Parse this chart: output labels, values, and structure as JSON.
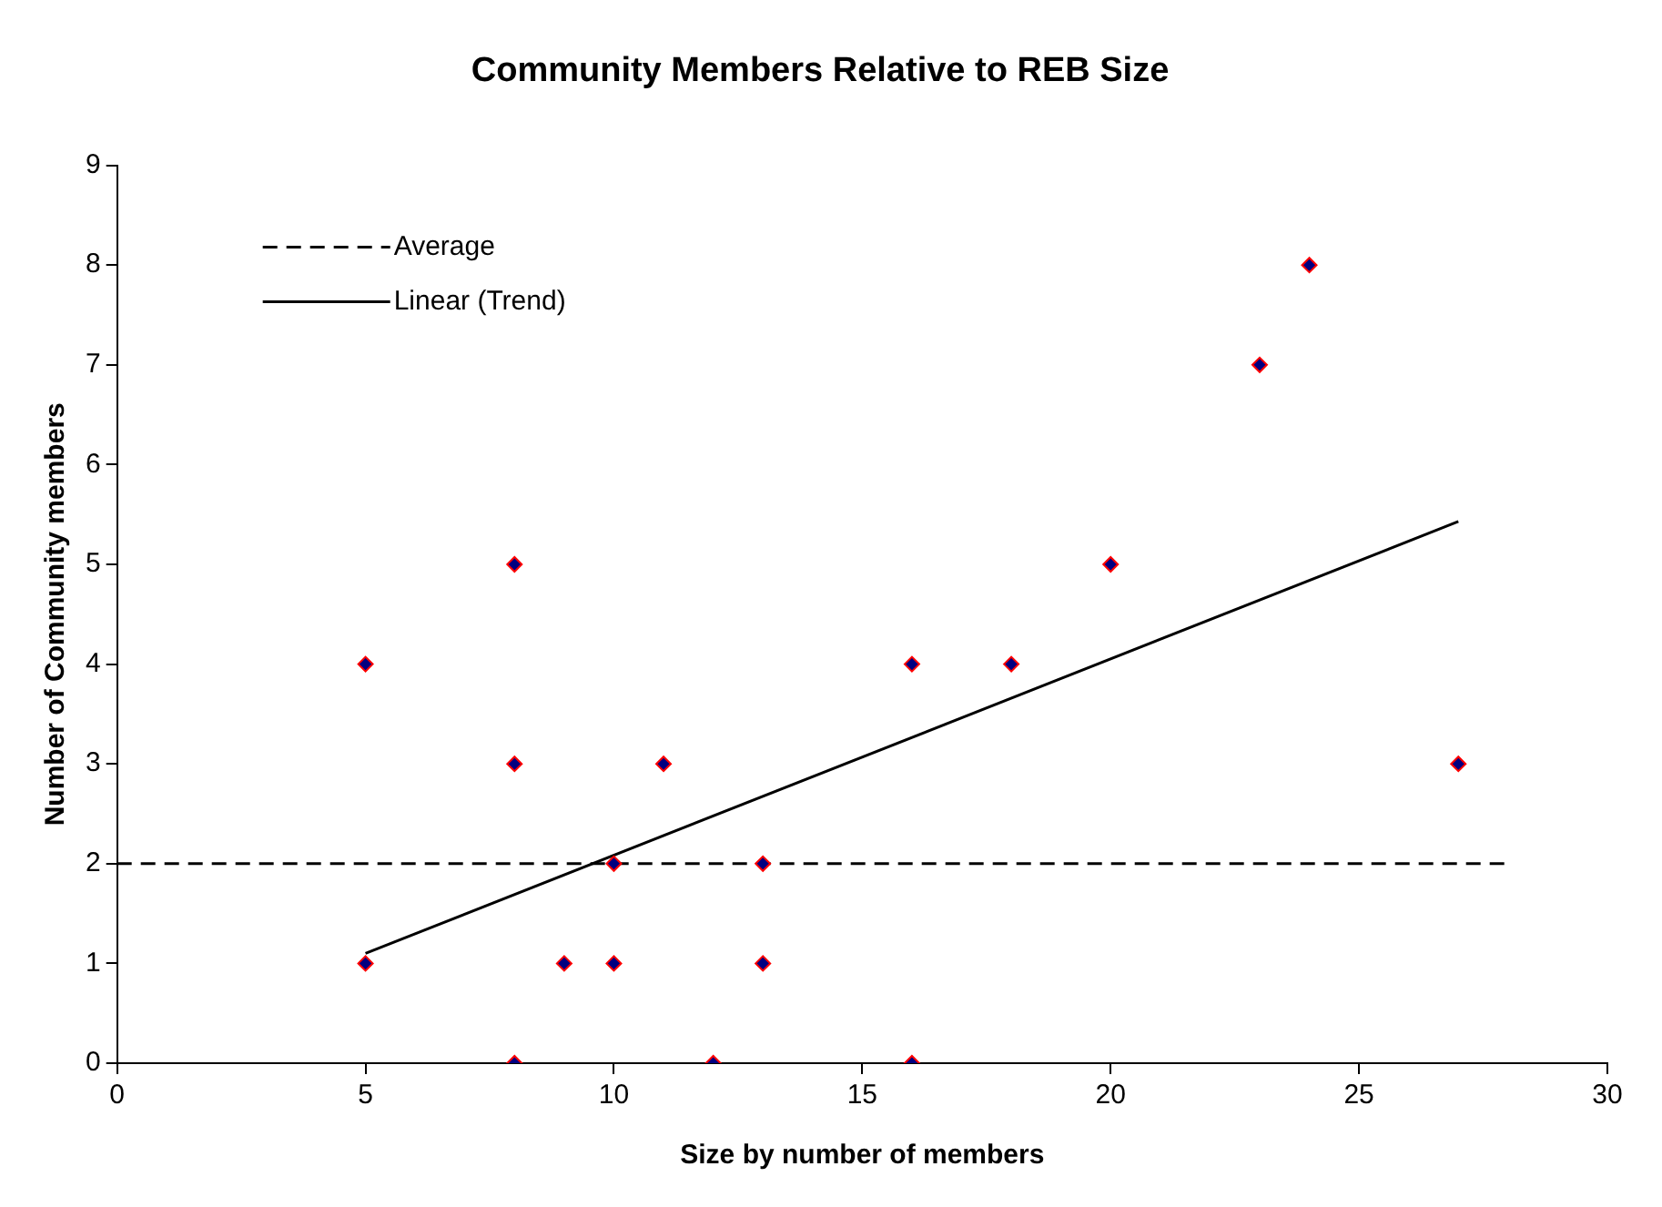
{
  "chart_data": {
    "type": "scatter",
    "title": "Community Members Relative to REB Size",
    "xlabel": "Size by number of members",
    "ylabel": "Number of Community members",
    "xlim": [
      0,
      30
    ],
    "xticks": [
      0,
      5,
      10,
      15,
      20,
      25,
      30
    ],
    "ylim": [
      0,
      9
    ],
    "yticks": [
      0,
      1,
      2,
      3,
      4,
      5,
      6,
      7,
      8,
      9
    ],
    "grid": false,
    "legend": "top left",
    "series": [
      {
        "type": "scatter",
        "marker": "diamond",
        "color": "#000080",
        "x": [
          5,
          5,
          8,
          8,
          8,
          9,
          10,
          10,
          11,
          12,
          13,
          13,
          16,
          16,
          18,
          20,
          23,
          24,
          27
        ],
        "values": [
          4,
          1,
          5,
          3,
          0,
          1,
          2,
          1,
          3,
          0,
          2,
          1,
          4,
          0,
          4,
          5,
          7,
          8,
          3
        ]
      },
      {
        "type": "line",
        "name": "Average",
        "color": "#000000",
        "line_style": "dashed",
        "x": [
          0,
          28
        ],
        "values": [
          2,
          2
        ]
      },
      {
        "type": "line",
        "name": "Linear (Trend)",
        "color": "#000000",
        "line_style": "solid",
        "x": [
          5,
          27
        ],
        "values": [
          1.1,
          5.43
        ]
      }
    ]
  }
}
